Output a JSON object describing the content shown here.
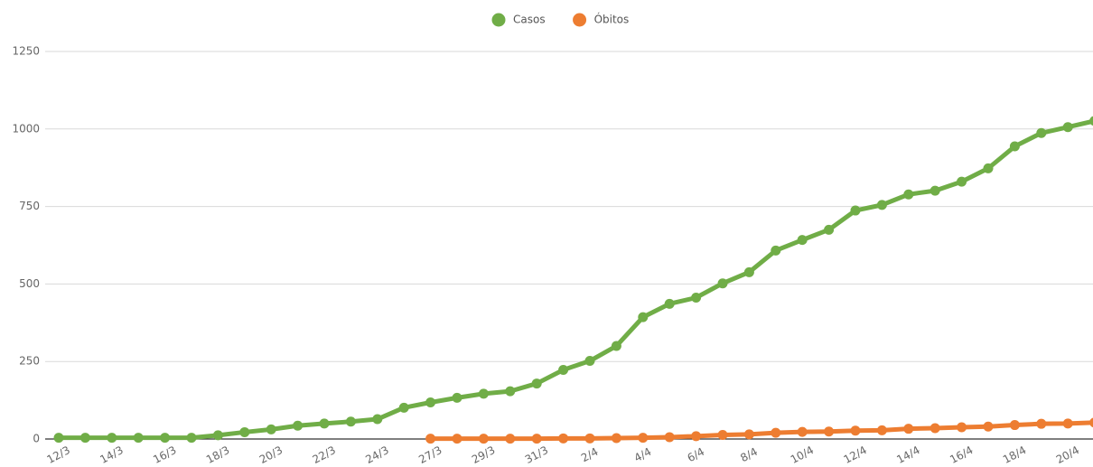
{
  "chart_data": {
    "type": "line",
    "categories": [
      "12/3",
      null,
      "14/3",
      null,
      "16/3",
      null,
      "18/3",
      null,
      "20/3",
      null,
      "22/3",
      null,
      "24/3",
      null,
      "27/3",
      null,
      "29/3",
      null,
      "31/3",
      null,
      "2/4",
      null,
      "4/4",
      null,
      "6/4",
      null,
      "8/4",
      null,
      "10/4",
      null,
      "12/4",
      null,
      "14/4",
      null,
      "16/4",
      null,
      "18/4",
      null,
      "20/4",
      null
    ],
    "series": [
      {
        "name": "Casos",
        "color": "#70ad47",
        "values": [
          4,
          4,
          4,
          4,
          4,
          4,
          12,
          22,
          31,
          43,
          50,
          56,
          64,
          101,
          118,
          133,
          146,
          154,
          179,
          223,
          252,
          300,
          393,
          436,
          456,
          502,
          538,
          608,
          642,
          675,
          737,
          755,
          789,
          801,
          830,
          873,
          944,
          987,
          1006,
          1026
        ]
      },
      {
        "name": "Óbitos",
        "color": "#ed7d31",
        "values": [
          null,
          null,
          null,
          null,
          null,
          null,
          null,
          null,
          null,
          null,
          null,
          null,
          null,
          null,
          1,
          1,
          1,
          1,
          1,
          2,
          2,
          3,
          4,
          6,
          9,
          13,
          15,
          20,
          23,
          24,
          27,
          28,
          33,
          35,
          38,
          40,
          45,
          49,
          50,
          53
        ]
      }
    ],
    "ylim": [
      0,
      1250
    ],
    "yticks": [
      0,
      250,
      500,
      750,
      {
        "value": 1000,
        "label": "1000"
      },
      {
        "value": 1250,
        "label": "1250"
      }
    ],
    "grid": true,
    "legend": "top"
  }
}
